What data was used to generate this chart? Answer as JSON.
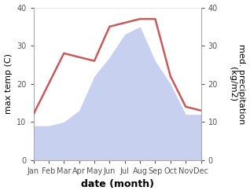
{
  "months": [
    "Jan",
    "Feb",
    "Mar",
    "Apr",
    "May",
    "Jun",
    "Jul",
    "Aug",
    "Sep",
    "Oct",
    "Nov",
    "Dec"
  ],
  "temperature": [
    12,
    20,
    28,
    27,
    26,
    35,
    36,
    37,
    37,
    22,
    14,
    13
  ],
  "precipitation": [
    9,
    9,
    10,
    13,
    22,
    27,
    33,
    35,
    26,
    20,
    12,
    12
  ],
  "temp_color": "#c85a5a",
  "precip_fill_color": "#c8d0f0",
  "ylim": [
    0,
    40
  ],
  "yticks": [
    0,
    10,
    20,
    30,
    40
  ],
  "xlabel": "date (month)",
  "ylabel_left": "max temp (C)",
  "ylabel_right": "med. precipitation\n(kg/m2)",
  "background_color": "#ffffff",
  "tick_label_size": 7,
  "axis_label_size": 8,
  "xlabel_size": 9
}
